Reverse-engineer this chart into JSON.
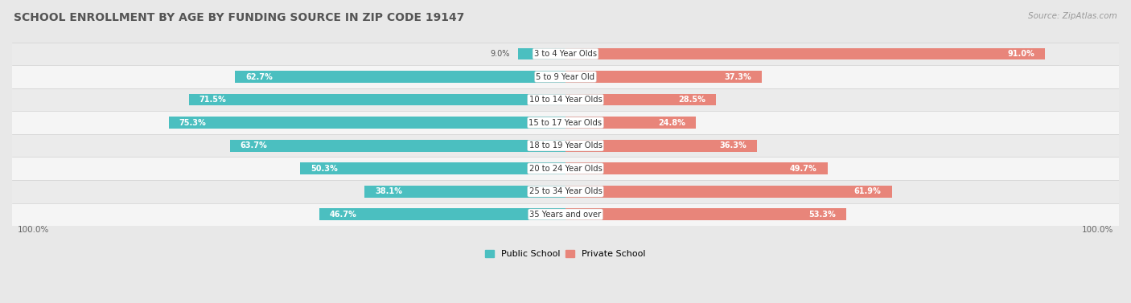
{
  "title": "SCHOOL ENROLLMENT BY AGE BY FUNDING SOURCE IN ZIP CODE 19147",
  "source": "Source: ZipAtlas.com",
  "categories": [
    "3 to 4 Year Olds",
    "5 to 9 Year Old",
    "10 to 14 Year Olds",
    "15 to 17 Year Olds",
    "18 to 19 Year Olds",
    "20 to 24 Year Olds",
    "25 to 34 Year Olds",
    "35 Years and over"
  ],
  "public_pct": [
    9.0,
    62.7,
    71.5,
    75.3,
    63.7,
    50.3,
    38.1,
    46.7
  ],
  "private_pct": [
    91.0,
    37.3,
    28.5,
    24.8,
    36.3,
    49.7,
    61.9,
    53.3
  ],
  "public_color": "#4BBFC0",
  "private_color": "#E8857A",
  "private_color_light": "#F2B5AE",
  "bg_row_odd": "#EBEBEB",
  "bg_row_even": "#F7F7F7",
  "title_fontsize": 10,
  "bar_height": 0.52,
  "figsize": [
    14.06,
    3.77
  ]
}
